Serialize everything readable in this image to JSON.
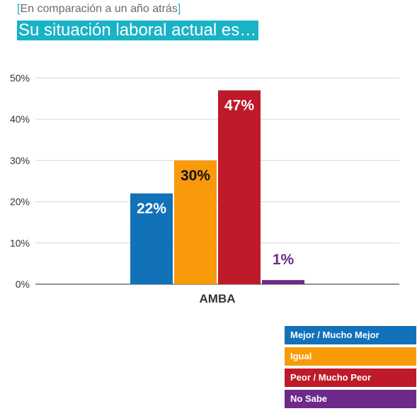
{
  "header": {
    "subtitle_open": "[",
    "subtitle_text": "En comparación a un año atrás",
    "subtitle_close": "]",
    "title": "Su situación laboral actual es…"
  },
  "chart_data": {
    "type": "bar",
    "categories": [
      "AMBA"
    ],
    "series": [
      {
        "name": "Mejor / Mucho Mejor",
        "values": [
          22
        ],
        "color": "#1172b9",
        "label": "22%",
        "label_color": "#ffffff"
      },
      {
        "name": "Igual",
        "values": [
          30
        ],
        "color": "#f99a0b",
        "label": "30%",
        "label_color": "#111111"
      },
      {
        "name": "Peor / Mucho Peor",
        "values": [
          47
        ],
        "color": "#be1a29",
        "label": "47%",
        "label_color": "#ffffff"
      },
      {
        "name": "No Sabe",
        "values": [
          1
        ],
        "color": "#6e2a8a",
        "label": "1%",
        "label_color": "#6e2a8a"
      }
    ],
    "ylim": [
      0,
      50
    ],
    "yticks": [
      0,
      10,
      20,
      30,
      40,
      50
    ],
    "ytick_labels": [
      "0%",
      "10%",
      "20%",
      "30%",
      "40%",
      "50%"
    ],
    "grid": true,
    "legend_position": "bottom-right"
  }
}
